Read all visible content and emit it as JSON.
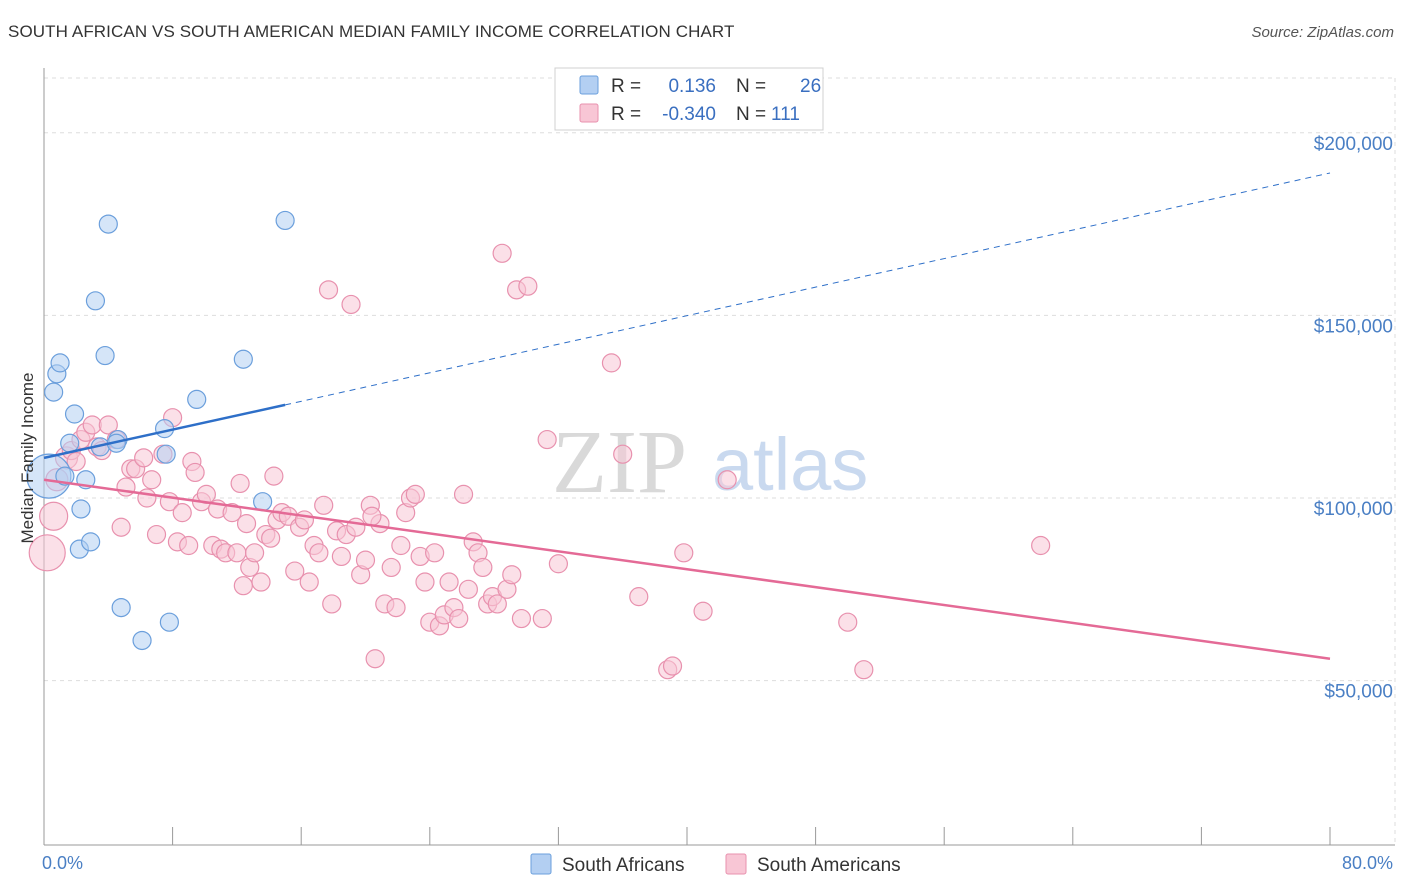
{
  "title": "SOUTH AFRICAN VS SOUTH AMERICAN MEDIAN FAMILY INCOME CORRELATION CHART",
  "source": "Source: ZipAtlas.com",
  "watermark": {
    "zip": "ZIP",
    "atlas": "atlas"
  },
  "colors": {
    "blue_fill": "#b3cff2",
    "blue_stroke": "#6b9fdc",
    "blue_line": "#2e6fc8",
    "pink_fill": "#f8c6d5",
    "pink_stroke": "#e891ae",
    "pink_line": "#e46a96",
    "grid": "#dddddd",
    "tick_label": "#4a7fc4"
  },
  "legend": {
    "rows": [
      {
        "r_label": "R =",
        "r_value": "0.136",
        "n_label": "N =",
        "n_value": "26"
      },
      {
        "r_label": "R =",
        "r_value": "-0.340",
        "n_label": "N =",
        "n_value": "111"
      }
    ]
  },
  "bottom_legend": [
    "South Africans",
    "South Americans"
  ],
  "chart_data": {
    "type": "scatter",
    "title": "SOUTH AFRICAN VS SOUTH AMERICAN MEDIAN FAMILY INCOME CORRELATION CHART",
    "xlabel": "",
    "ylabel": "Median Family Income",
    "xlim": [
      0,
      80
    ],
    "ylim": [
      5000,
      215000
    ],
    "x_tick_labels": [
      "0.0%",
      "80.0%"
    ],
    "y_ticks": [
      {
        "value": 50000,
        "label": "$50,000"
      },
      {
        "value": 100000,
        "label": "$100,000"
      },
      {
        "value": 150000,
        "label": "$150,000"
      },
      {
        "value": 200000,
        "label": "$200,000"
      }
    ],
    "grid": true,
    "legend_position": "top-center",
    "series": [
      {
        "name": "South Africans",
        "r": 0.136,
        "n": 26,
        "trend": {
          "x0": 0,
          "y0": 111000,
          "x1": 15,
          "y1": 125500,
          "x_ext": 80,
          "y_ext": 189000
        },
        "points": [
          [
            0.3,
            106000,
            22
          ],
          [
            0.6,
            129000,
            9
          ],
          [
            0.8,
            134000,
            9
          ],
          [
            1.0,
            137000,
            9
          ],
          [
            1.3,
            106000,
            9
          ],
          [
            1.6,
            115000,
            9
          ],
          [
            1.9,
            123000,
            9
          ],
          [
            2.2,
            86000,
            9
          ],
          [
            2.3,
            97000,
            9
          ],
          [
            2.6,
            105000,
            9
          ],
          [
            2.9,
            88000,
            9
          ],
          [
            3.2,
            154000,
            9
          ],
          [
            3.5,
            114000,
            9
          ],
          [
            3.8,
            139000,
            9
          ],
          [
            4.0,
            175000,
            9
          ],
          [
            4.6,
            116000,
            9
          ],
          [
            4.8,
            70000,
            9
          ],
          [
            6.1,
            61000,
            9
          ],
          [
            7.5,
            119000,
            9
          ],
          [
            7.6,
            112000,
            9
          ],
          [
            7.8,
            66000,
            9
          ],
          [
            9.5,
            127000,
            9
          ],
          [
            12.4,
            138000,
            9
          ],
          [
            13.6,
            99000,
            9
          ],
          [
            15.0,
            176000,
            9
          ],
          [
            4.5,
            115000,
            9
          ]
        ]
      },
      {
        "name": "South Americans",
        "r": -0.34,
        "n": 111,
        "trend": {
          "x0": 0,
          "y0": 105000,
          "x1": 80,
          "y1": 56000
        },
        "points": [
          [
            0.2,
            85000,
            18
          ],
          [
            0.6,
            95000,
            14
          ],
          [
            0.8,
            105000,
            11
          ],
          [
            1.4,
            111000,
            11
          ],
          [
            1.7,
            113000,
            9
          ],
          [
            2.0,
            110000,
            9
          ],
          [
            2.3,
            116000,
            9
          ],
          [
            2.6,
            118000,
            9
          ],
          [
            3.0,
            120000,
            9
          ],
          [
            3.3,
            114000,
            9
          ],
          [
            3.6,
            113000,
            9
          ],
          [
            4.0,
            120000,
            9
          ],
          [
            4.5,
            116000,
            9
          ],
          [
            4.8,
            92000,
            9
          ],
          [
            5.1,
            103000,
            9
          ],
          [
            5.4,
            108000,
            9
          ],
          [
            5.7,
            108000,
            9
          ],
          [
            6.2,
            111000,
            9
          ],
          [
            6.4,
            100000,
            9
          ],
          [
            6.7,
            105000,
            9
          ],
          [
            7.0,
            90000,
            9
          ],
          [
            7.4,
            112000,
            9
          ],
          [
            7.8,
            99000,
            9
          ],
          [
            8.0,
            122000,
            9
          ],
          [
            8.3,
            88000,
            9
          ],
          [
            8.6,
            96000,
            9
          ],
          [
            9.0,
            87000,
            9
          ],
          [
            9.2,
            110000,
            9
          ],
          [
            9.4,
            107000,
            9
          ],
          [
            9.8,
            99000,
            9
          ],
          [
            10.1,
            101000,
            9
          ],
          [
            10.5,
            87000,
            9
          ],
          [
            10.8,
            97000,
            9
          ],
          [
            11.0,
            86000,
            9
          ],
          [
            11.3,
            85000,
            9
          ],
          [
            11.7,
            96000,
            9
          ],
          [
            12.0,
            85000,
            9
          ],
          [
            12.2,
            104000,
            9
          ],
          [
            12.4,
            76000,
            9
          ],
          [
            12.6,
            93000,
            9
          ],
          [
            12.8,
            81000,
            9
          ],
          [
            13.1,
            85000,
            9
          ],
          [
            13.5,
            77000,
            9
          ],
          [
            13.8,
            90000,
            9
          ],
          [
            14.1,
            89000,
            9
          ],
          [
            14.3,
            106000,
            9
          ],
          [
            14.5,
            94000,
            9
          ],
          [
            14.8,
            96000,
            9
          ],
          [
            15.2,
            95000,
            9
          ],
          [
            15.6,
            80000,
            9
          ],
          [
            15.9,
            92000,
            9
          ],
          [
            16.2,
            94000,
            9
          ],
          [
            16.5,
            77000,
            9
          ],
          [
            16.8,
            87000,
            9
          ],
          [
            17.1,
            85000,
            9
          ],
          [
            17.4,
            98000,
            9
          ],
          [
            17.7,
            157000,
            9
          ],
          [
            17.9,
            71000,
            9
          ],
          [
            18.2,
            91000,
            9
          ],
          [
            18.5,
            84000,
            9
          ],
          [
            18.8,
            90000,
            9
          ],
          [
            19.1,
            153000,
            9
          ],
          [
            19.4,
            92000,
            9
          ],
          [
            19.7,
            79000,
            9
          ],
          [
            20.0,
            83000,
            9
          ],
          [
            20.3,
            98000,
            9
          ],
          [
            20.6,
            56000,
            9
          ],
          [
            20.9,
            93000,
            9
          ],
          [
            21.2,
            71000,
            9
          ],
          [
            21.6,
            81000,
            9
          ],
          [
            21.9,
            70000,
            9
          ],
          [
            22.2,
            87000,
            9
          ],
          [
            22.5,
            96000,
            9
          ],
          [
            22.8,
            100000,
            9
          ],
          [
            23.1,
            101000,
            9
          ],
          [
            23.4,
            84000,
            9
          ],
          [
            23.7,
            77000,
            9
          ],
          [
            24.0,
            66000,
            9
          ],
          [
            24.3,
            85000,
            9
          ],
          [
            24.6,
            65000,
            9
          ],
          [
            24.9,
            68000,
            9
          ],
          [
            25.2,
            77000,
            9
          ],
          [
            25.5,
            70000,
            9
          ],
          [
            25.8,
            67000,
            9
          ],
          [
            26.1,
            101000,
            9
          ],
          [
            26.4,
            75000,
            9
          ],
          [
            26.7,
            88000,
            9
          ],
          [
            27.0,
            85000,
            9
          ],
          [
            27.3,
            81000,
            9
          ],
          [
            27.6,
            71000,
            9
          ],
          [
            27.9,
            73000,
            9
          ],
          [
            28.2,
            71000,
            9
          ],
          [
            28.5,
            167000,
            9
          ],
          [
            28.8,
            75000,
            9
          ],
          [
            29.1,
            79000,
            9
          ],
          [
            29.4,
            157000,
            9
          ],
          [
            29.7,
            67000,
            9
          ],
          [
            30.1,
            158000,
            9
          ],
          [
            31.0,
            67000,
            9
          ],
          [
            31.3,
            116000,
            9
          ],
          [
            32.0,
            82000,
            9
          ],
          [
            35.3,
            137000,
            9
          ],
          [
            36.0,
            112000,
            9
          ],
          [
            37.0,
            73000,
            9
          ],
          [
            38.8,
            53000,
            9
          ],
          [
            39.1,
            54000,
            9
          ],
          [
            39.8,
            85000,
            9
          ],
          [
            41.0,
            69000,
            9
          ],
          [
            42.5,
            105000,
            9
          ],
          [
            50.0,
            66000,
            9
          ],
          [
            51.0,
            53000,
            9
          ],
          [
            62.0,
            87000,
            9
          ],
          [
            20.4,
            95000,
            9
          ]
        ]
      }
    ]
  }
}
